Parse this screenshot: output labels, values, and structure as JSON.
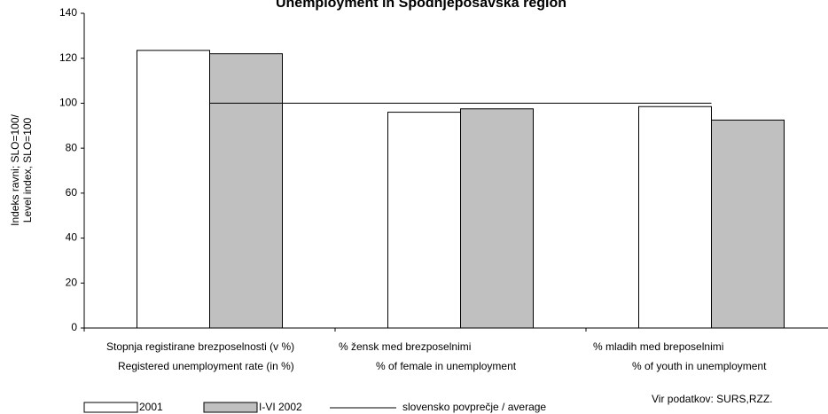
{
  "chart_data": {
    "type": "bar",
    "title": "Unemployment in Spodnjeposavska region",
    "y_label": [
      "Indeks ravni; SLO=100/",
      "Level index, SLO=100"
    ],
    "categories": [
      [
        "Stopnja registirane brezposelnosti (v %)",
        "Registered unemployment rate (in %)"
      ],
      [
        "% žensk med  brezposelnimi",
        "% of female in unemployment"
      ],
      [
        "% mladih med breposelnimi",
        "% of youth in unemployment"
      ]
    ],
    "series": [
      {
        "name": "2001",
        "color": "#ffffff",
        "values": [
          123.5,
          96,
          98.5
        ]
      },
      {
        "name": "I-VI 2002",
        "color": "#c0c0c0",
        "values": [
          122,
          97.5,
          92.5
        ]
      },
      {
        "name": "slovensko povprečje / average",
        "type": "line",
        "color": "#000000",
        "values": [
          100,
          100,
          100
        ]
      }
    ],
    "ylim": [
      0,
      140
    ],
    "yticks": [
      0,
      20,
      40,
      60,
      80,
      100,
      120,
      140
    ],
    "source": "Vir podatkov: SURS,RZZ."
  }
}
